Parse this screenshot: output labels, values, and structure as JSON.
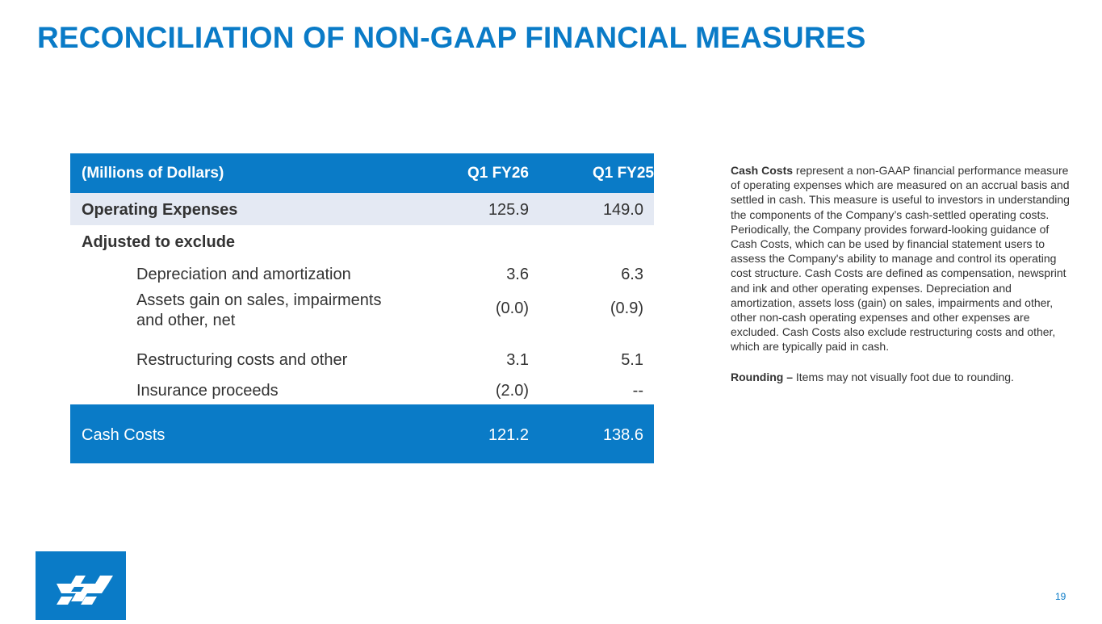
{
  "slide": {
    "title": "RECONCILIATION OF NON-GAAP FINANCIAL MEASURES",
    "page_number": "19"
  },
  "table": {
    "header": {
      "label": "(Millions of Dollars)",
      "col1": "Q1 FY26",
      "col2": "Q1 FY25"
    },
    "operating_expenses": {
      "label": "Operating Expenses",
      "col1": "125.9",
      "col2": "149.0"
    },
    "adjusted_heading": "Adjusted to exclude",
    "adjustments": [
      {
        "label": "Depreciation and amortization",
        "col1": "3.6",
        "col2": "6.3"
      },
      {
        "label": "Assets gain on sales, impairments and other, net",
        "col1": "(0.0)",
        "col2": "(0.9)"
      },
      {
        "label": "Restructuring costs and other",
        "col1": "3.1",
        "col2": "5.1"
      },
      {
        "label": "Insurance proceeds",
        "col1": "(2.0)",
        "col2": "--"
      }
    ],
    "total": {
      "label": "Cash Costs",
      "col1": "121.2",
      "col2": "138.6"
    }
  },
  "notes": {
    "cash_costs_term": "Cash Costs",
    "cash_costs_text": " represent a non-GAAP financial performance measure of operating expenses which are measured on an accrual basis and settled in cash. This measure is useful to investors in understanding the components of the Company’s cash-settled operating costs. Periodically, the Company provides forward-looking guidance of Cash Costs, which can be used by financial statement users to assess the Company's ability to manage and control its operating cost structure. Cash Costs are defined as compensation, newsprint and ink and other operating expenses. Depreciation and amortization, assets loss (gain) on sales, impairments and other, other non-cash operating expenses and other expenses are excluded. Cash Costs also exclude restructuring costs and other, which are typically paid in cash.",
    "rounding_term": "Rounding –",
    "rounding_text": " Items may not visually foot due to rounding."
  },
  "colors": {
    "brand_blue": "#0a7bc7",
    "row_shade": "#e4e9f3"
  },
  "logo": {
    "icon": "company-logo-icon"
  }
}
